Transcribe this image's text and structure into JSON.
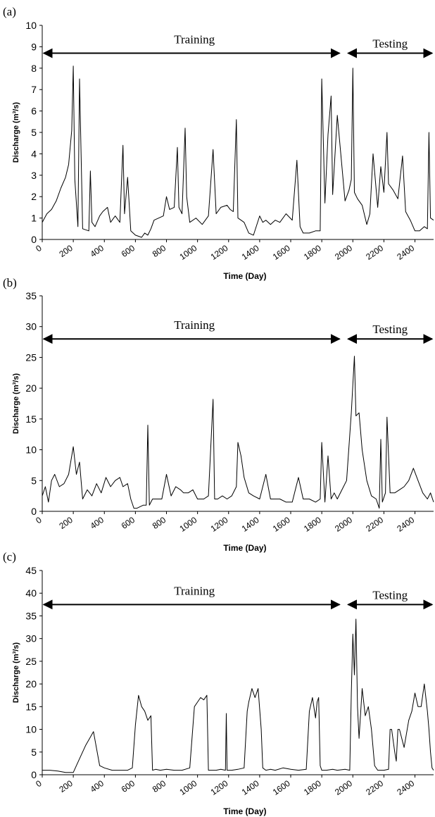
{
  "chart_data": [
    {
      "type": "line",
      "panel_label": "(a)",
      "xlabel": "Time (Day)",
      "ylabel": "Discharge (m³/s)",
      "xlim": [
        0,
        2520
      ],
      "ylim": [
        0,
        10
      ],
      "xticks": [
        "0",
        "200",
        "400",
        "600",
        "800",
        "1000",
        "1200",
        "1400",
        "1600",
        "1800",
        "2000",
        "2200",
        "2400"
      ],
      "yticks": [
        "0",
        "1",
        "2",
        "3",
        "4",
        "5",
        "6",
        "7",
        "8",
        "9",
        "10"
      ],
      "annotations": {
        "training": "Training",
        "testing": "Testing",
        "split_day": 1960,
        "arrow_level": 8.7
      },
      "series": [
        {
          "x": [
            0,
            30,
            60,
            90,
            120,
            150,
            170,
            190,
            200,
            210,
            230,
            240,
            260,
            300,
            310,
            320,
            340,
            370,
            390,
            420,
            440,
            470,
            500,
            520,
            530,
            550,
            570,
            600,
            640,
            660,
            680,
            700,
            720,
            750,
            780,
            800,
            820,
            850,
            870,
            880,
            900,
            920,
            930,
            950,
            990,
            1030,
            1070,
            1100,
            1120,
            1150,
            1190,
            1210,
            1230,
            1250,
            1260,
            1280,
            1300,
            1330,
            1360,
            1400,
            1420,
            1440,
            1470,
            1500,
            1530,
            1570,
            1610,
            1640,
            1660,
            1680,
            1720,
            1760,
            1790,
            1800,
            1820,
            1840,
            1860,
            1870,
            1900,
            1950,
            1975,
            1990,
            2000,
            2010,
            2030,
            2060,
            2090,
            2110,
            2130,
            2160,
            2180,
            2200,
            2220,
            2230,
            2260,
            2290,
            2320,
            2340,
            2370,
            2400,
            2430,
            2460,
            2480,
            2490,
            2500,
            2520
          ],
          "y": [
            0.8,
            1.2,
            1.4,
            1.8,
            2.4,
            2.9,
            3.5,
            5.1,
            8.1,
            2.8,
            0.6,
            7.5,
            0.5,
            0.4,
            3.2,
            0.8,
            0.6,
            1.1,
            1.3,
            1.5,
            0.8,
            1.1,
            0.8,
            4.4,
            1.2,
            2.9,
            0.4,
            0.2,
            0.1,
            0.3,
            0.2,
            0.5,
            0.9,
            1.0,
            1.1,
            2.0,
            1.4,
            1.5,
            4.3,
            1.5,
            1.2,
            5.2,
            2.0,
            0.8,
            1.0,
            0.7,
            1.1,
            4.2,
            1.2,
            1.5,
            1.6,
            1.4,
            1.3,
            5.6,
            1.0,
            0.9,
            0.8,
            0.3,
            0.2,
            1.1,
            0.8,
            0.9,
            0.7,
            0.9,
            0.8,
            1.2,
            0.9,
            3.7,
            0.6,
            0.3,
            0.3,
            0.4,
            0.4,
            7.5,
            1.7,
            4.9,
            6.7,
            2.1,
            5.8,
            1.8,
            2.3,
            2.8,
            8.0,
            2.2,
            1.9,
            1.6,
            0.7,
            1.2,
            4.0,
            1.5,
            3.4,
            2.2,
            5.0,
            2.6,
            2.3,
            1.9,
            3.9,
            1.3,
            0.9,
            0.4,
            0.4,
            0.6,
            0.5,
            5.0,
            1.0,
            0.9
          ]
        }
      ]
    },
    {
      "type": "line",
      "panel_label": "(b)",
      "xlabel": "Time (Day)",
      "ylabel": "Discharge (m³/s)",
      "xlim": [
        0,
        2520
      ],
      "ylim": [
        0,
        35
      ],
      "xticks": [
        "0",
        "200",
        "400",
        "600",
        "800",
        "1000",
        "1200",
        "1400",
        "1600",
        "1800",
        "2000",
        "2200",
        "2400"
      ],
      "yticks": [
        "0",
        "5",
        "10",
        "15",
        "20",
        "25",
        "30",
        "35"
      ],
      "annotations": {
        "training": "Training",
        "testing": "Testing",
        "split_day": 1960,
        "arrow_level": 28.0
      },
      "series": [
        {
          "x": [
            0,
            20,
            40,
            60,
            80,
            110,
            140,
            170,
            200,
            220,
            240,
            260,
            290,
            320,
            350,
            380,
            410,
            440,
            470,
            500,
            520,
            550,
            570,
            590,
            610,
            650,
            670,
            680,
            690,
            710,
            740,
            770,
            800,
            830,
            860,
            890,
            910,
            940,
            970,
            1000,
            1040,
            1070,
            1100,
            1110,
            1130,
            1160,
            1190,
            1220,
            1250,
            1260,
            1280,
            1300,
            1330,
            1360,
            1400,
            1440,
            1470,
            1500,
            1530,
            1570,
            1610,
            1650,
            1680,
            1720,
            1760,
            1790,
            1800,
            1820,
            1840,
            1860,
            1880,
            1900,
            1930,
            1960,
            1990,
            2010,
            2020,
            2040,
            2060,
            2090,
            2120,
            2150,
            2170,
            2180,
            2190,
            2210,
            2220,
            2240,
            2270,
            2300,
            2330,
            2360,
            2390,
            2420,
            2450,
            2480,
            2500,
            2520
          ],
          "y": [
            2.5,
            4.0,
            1.5,
            5.0,
            6.0,
            4.0,
            4.5,
            6.0,
            10.5,
            6.0,
            8.0,
            2.0,
            3.5,
            2.5,
            4.5,
            3.0,
            5.5,
            4.0,
            5.0,
            5.5,
            4.0,
            4.5,
            2.0,
            0.5,
            0.5,
            1.0,
            1.0,
            14.0,
            1.0,
            2.0,
            2.0,
            2.0,
            6.0,
            2.5,
            4.0,
            3.5,
            3.0,
            3.0,
            3.5,
            2.0,
            2.0,
            2.5,
            18.2,
            2.0,
            2.0,
            2.5,
            2.0,
            2.5,
            4.0,
            11.2,
            9.0,
            5.5,
            3.0,
            2.5,
            2.0,
            6.0,
            2.0,
            2.0,
            2.0,
            1.5,
            1.5,
            5.5,
            2.0,
            2.0,
            1.5,
            2.0,
            11.2,
            1.5,
            9.0,
            2.0,
            3.0,
            2.0,
            3.5,
            5.0,
            16.0,
            25.2,
            15.5,
            16.0,
            10.0,
            5.0,
            2.5,
            2.0,
            0.5,
            11.7,
            1.5,
            3.0,
            15.3,
            3.0,
            3.0,
            3.5,
            4.0,
            5.0,
            7.0,
            5.0,
            3.0,
            2.0,
            3.0,
            1.5
          ]
        }
      ]
    },
    {
      "type": "line",
      "panel_label": "(c)",
      "xlabel": "Time (Day)",
      "ylabel": "Discharge (m³/s)",
      "xlim": [
        0,
        2520
      ],
      "ylim": [
        0,
        45
      ],
      "xticks": [
        "0",
        "200",
        "400",
        "600",
        "800",
        "1000",
        "1200",
        "1400",
        "1600",
        "1800",
        "2000",
        "2200",
        "2400"
      ],
      "yticks": [
        "0",
        "5",
        "10",
        "15",
        "20",
        "25",
        "30",
        "35",
        "40",
        "45"
      ],
      "annotations": {
        "training": "Training",
        "testing": "Testing",
        "split_day": 1960,
        "arrow_level": 37.5
      },
      "series": [
        {
          "x": [
            0,
            50,
            100,
            150,
            200,
            220,
            280,
            330,
            370,
            400,
            450,
            500,
            550,
            580,
            600,
            620,
            640,
            660,
            680,
            700,
            710,
            730,
            760,
            800,
            850,
            900,
            950,
            980,
            1000,
            1020,
            1040,
            1060,
            1070,
            1090,
            1120,
            1150,
            1180,
            1185,
            1190,
            1220,
            1260,
            1300,
            1320,
            1330,
            1350,
            1370,
            1390,
            1410,
            1420,
            1440,
            1470,
            1500,
            1550,
            1600,
            1650,
            1700,
            1720,
            1740,
            1760,
            1770,
            1780,
            1790,
            1800,
            1830,
            1870,
            1900,
            1950,
            1980,
            1990,
            2000,
            2010,
            2020,
            2030,
            2040,
            2060,
            2080,
            2100,
            2120,
            2140,
            2160,
            2180,
            2200,
            2230,
            2240,
            2250,
            2270,
            2280,
            2290,
            2300,
            2330,
            2360,
            2380,
            2400,
            2420,
            2440,
            2460,
            2480,
            2490,
            2500,
            2510,
            2520
          ],
          "y": [
            1.0,
            1.0,
            0.8,
            0.5,
            0.5,
            2.0,
            6.5,
            9.5,
            2.0,
            1.5,
            1.0,
            1.0,
            1.0,
            1.5,
            11.0,
            17.5,
            15.0,
            14.0,
            12.0,
            13.0,
            1.0,
            1.2,
            1.0,
            1.2,
            1.0,
            1.0,
            1.5,
            15.0,
            16.0,
            17.0,
            16.5,
            17.5,
            1.0,
            1.0,
            1.0,
            1.2,
            1.0,
            13.5,
            1.0,
            1.0,
            1.2,
            1.5,
            14.0,
            16.0,
            19.0,
            17.0,
            19.0,
            10.0,
            1.5,
            1.0,
            1.2,
            1.0,
            1.5,
            1.2,
            1.0,
            1.2,
            14.0,
            17.0,
            12.5,
            16.0,
            17.0,
            2.0,
            1.0,
            1.0,
            1.2,
            1.0,
            1.2,
            1.0,
            18.0,
            31.0,
            22.0,
            34.3,
            15.0,
            8.0,
            19.0,
            13.0,
            15.0,
            10.0,
            2.0,
            1.0,
            1.0,
            1.0,
            1.2,
            10.0,
            10.0,
            5.0,
            3.0,
            10.0,
            10.0,
            6.0,
            12.0,
            14.0,
            18.0,
            15.0,
            15.0,
            20.0,
            14.0,
            10.0,
            5.0,
            1.5,
            1.0
          ]
        }
      ]
    }
  ]
}
